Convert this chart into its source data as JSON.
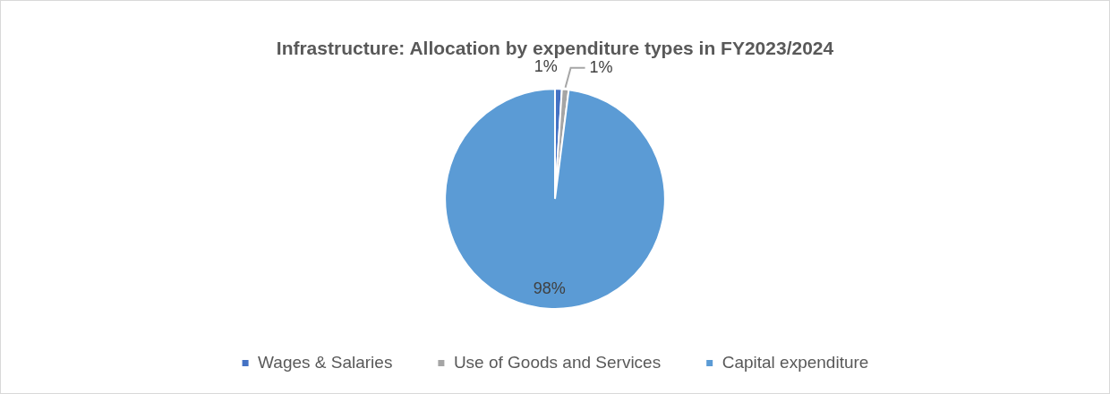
{
  "chart_data": {
    "type": "pie",
    "title": "Infrastructure: Allocation by expenditure types in FY2023/2024",
    "categories": [
      "Wages & Salaries",
      "Use of Goods and Services",
      "Capital expenditure"
    ],
    "values": [
      1,
      1,
      98
    ],
    "colors": [
      "#4472c4",
      "#a5a5a5",
      "#5b9bd5"
    ],
    "value_labels": [
      "1%",
      "1%",
      "98%"
    ],
    "legend": "bottom"
  }
}
